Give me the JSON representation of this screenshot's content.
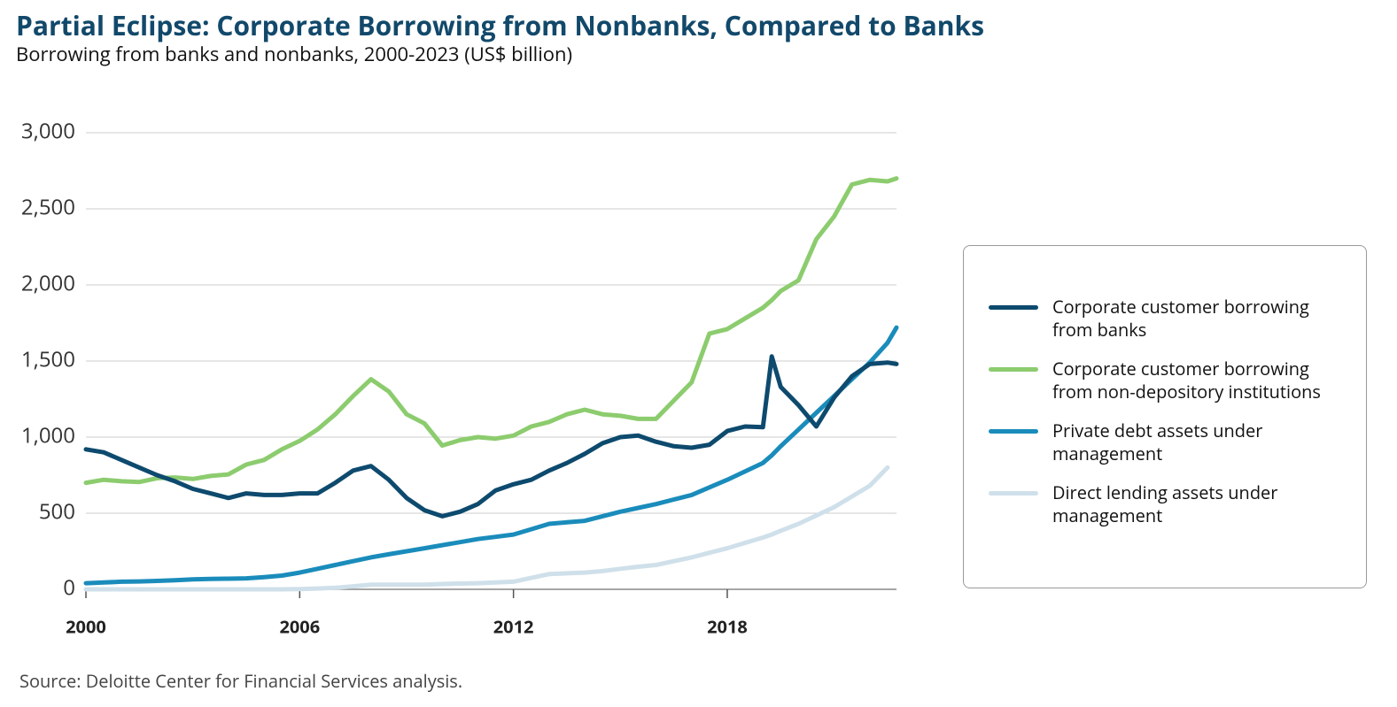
{
  "chart_data": {
    "type": "line",
    "title": "Partial Eclipse: Corporate Borrowing from Nonbanks, Compared to Banks",
    "subtitle": "Borrowing from banks and nonbanks, 2000-2023 (US$ billion)",
    "source": "Source: Deloitte Center for Financial Services analysis.",
    "x": [
      2000,
      2000.5,
      2001,
      2001.5,
      2002,
      2002.5,
      2003,
      2003.5,
      2004,
      2004.5,
      2005,
      2005.5,
      2006,
      2006.5,
      2007,
      2007.5,
      2008,
      2008.5,
      2009,
      2009.5,
      2010,
      2010.5,
      2011,
      2011.5,
      2012,
      2012.5,
      2013,
      2013.5,
      2014,
      2014.5,
      2015,
      2015.5,
      2016,
      2016.5,
      2017,
      2017.5,
      2018,
      2018.5,
      2019,
      2019.25,
      2019.5,
      2020,
      2020.5,
      2021,
      2021.5,
      2022,
      2022.5,
      2022.75
    ],
    "xlim": [
      2000,
      2022.75
    ],
    "xticks": [
      2000,
      2006,
      2012,
      2018
    ],
    "ylim": [
      0,
      3000
    ],
    "yticks": [
      0,
      500,
      {
        "value": 1000,
        "label": "1,000"
      },
      {
        "value": 1500,
        "label": "1,500"
      },
      {
        "value": 2000,
        "label": "2,000"
      },
      {
        "value": 2500,
        "label": "2,500"
      },
      {
        "value": 3000,
        "label": "3,000"
      }
    ],
    "grid": true,
    "legend": "right",
    "series": [
      {
        "name": "Corporate customer borrowing from banks",
        "color": "#0d4a6e",
        "values": [
          920,
          900,
          850,
          800,
          750,
          710,
          660,
          630,
          600,
          630,
          620,
          620,
          630,
          630,
          700,
          780,
          810,
          720,
          600,
          520,
          480,
          510,
          560,
          650,
          690,
          720,
          780,
          830,
          890,
          960,
          1000,
          1010,
          970,
          940,
          930,
          950,
          1040,
          1070,
          1065,
          1530,
          1330,
          1210,
          1070,
          1260,
          1400,
          1480,
          1490,
          1480
        ]
      },
      {
        "name": "Corporate customer borrowing from non-depository institutions",
        "color": "#8ccc6e",
        "values": [
          700,
          720,
          710,
          705,
          730,
          735,
          725,
          745,
          755,
          820,
          850,
          920,
          975,
          1050,
          1150,
          1270,
          1380,
          1300,
          1150,
          1090,
          945,
          980,
          1000,
          990,
          1010,
          1070,
          1100,
          1150,
          1180,
          1150,
          1140,
          1120,
          1120,
          1240,
          1360,
          1680,
          1710,
          1780,
          1850,
          1900,
          1960,
          2030,
          2300,
          2450,
          2660,
          2690,
          2680,
          2700
        ]
      },
      {
        "name": "Private debt assets under management",
        "color": "#1a8cbb",
        "values": [
          40,
          45,
          50,
          52,
          55,
          60,
          65,
          68,
          70,
          72,
          80,
          90,
          110,
          135,
          160,
          185,
          210,
          230,
          250,
          270,
          290,
          310,
          330,
          345,
          360,
          395,
          430,
          440,
          450,
          480,
          510,
          535,
          560,
          590,
          620,
          670,
          720,
          775,
          830,
          880,
          940,
          1050,
          1160,
          1270,
          1380,
          1490,
          1620,
          1720
        ]
      },
      {
        "name": "Direct lending assets under management",
        "color": "#cfe0ea",
        "values": [
          0,
          0,
          0,
          0,
          0,
          0,
          0,
          0,
          0,
          0,
          0,
          0,
          2,
          5,
          10,
          20,
          30,
          30,
          30,
          30,
          35,
          38,
          40,
          45,
          50,
          75,
          100,
          105,
          110,
          120,
          135,
          148,
          160,
          185,
          210,
          240,
          270,
          305,
          340,
          360,
          385,
          430,
          485,
          540,
          610,
          680,
          800,
          null
        ]
      }
    ]
  }
}
